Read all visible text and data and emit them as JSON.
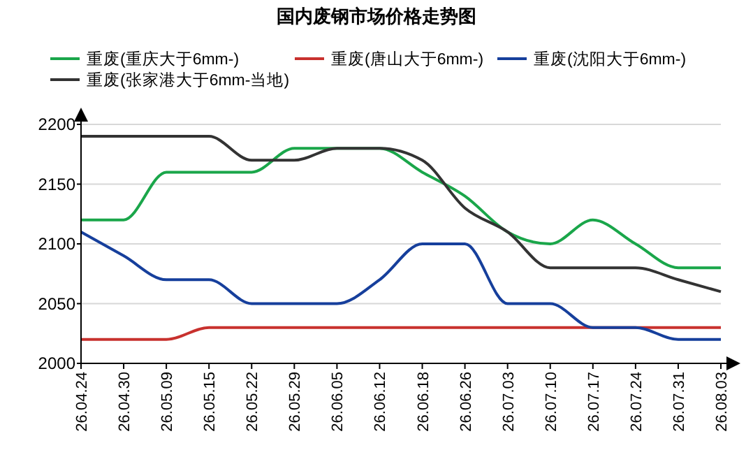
{
  "chart_data": {
    "type": "line",
    "title": "国内废钢市场价格走势图",
    "categories": [
      "26.04.24",
      "26.04.30",
      "26.05.09",
      "26.05.15",
      "26.05.22",
      "26.05.29",
      "26.06.05",
      "26.06.12",
      "26.06.18",
      "26.06.26",
      "26.07.03",
      "26.07.10",
      "26.07.17",
      "26.07.24",
      "26.07.31",
      "26.08.03"
    ],
    "series": [
      {
        "name": "重废(重庆大于6mm-)",
        "color": "#1aa64a",
        "values": [
          2120,
          2120,
          2160,
          2160,
          2160,
          2180,
          2180,
          2180,
          2160,
          2140,
          2110,
          2100,
          2120,
          2100,
          2080,
          2080
        ]
      },
      {
        "name": "重废(唐山大于6mm-)",
        "color": "#c8312e",
        "values": [
          2020,
          2020,
          2020,
          2030,
          2030,
          2030,
          2030,
          2030,
          2030,
          2030,
          2030,
          2030,
          2030,
          2030,
          2030,
          2030
        ]
      },
      {
        "name": "重废(沈阳大于6mm-)",
        "color": "#163f9c",
        "values": [
          2110,
          2090,
          2070,
          2070,
          2050,
          2050,
          2050,
          2070,
          2100,
          2100,
          2050,
          2050,
          2030,
          2030,
          2020,
          2020
        ]
      },
      {
        "name": "重废(张家港大于6mm-当地)",
        "color": "#333333",
        "values": [
          2190,
          2190,
          2190,
          2190,
          2170,
          2170,
          2180,
          2180,
          2170,
          2130,
          2110,
          2080,
          2080,
          2080,
          2070,
          2060
        ]
      }
    ],
    "ylim": [
      2000,
      2200
    ],
    "yticks": [
      2000,
      2050,
      2100,
      2150,
      2200
    ],
    "grid": "y",
    "legend": "top",
    "marker": "none",
    "line_style": "solid"
  }
}
